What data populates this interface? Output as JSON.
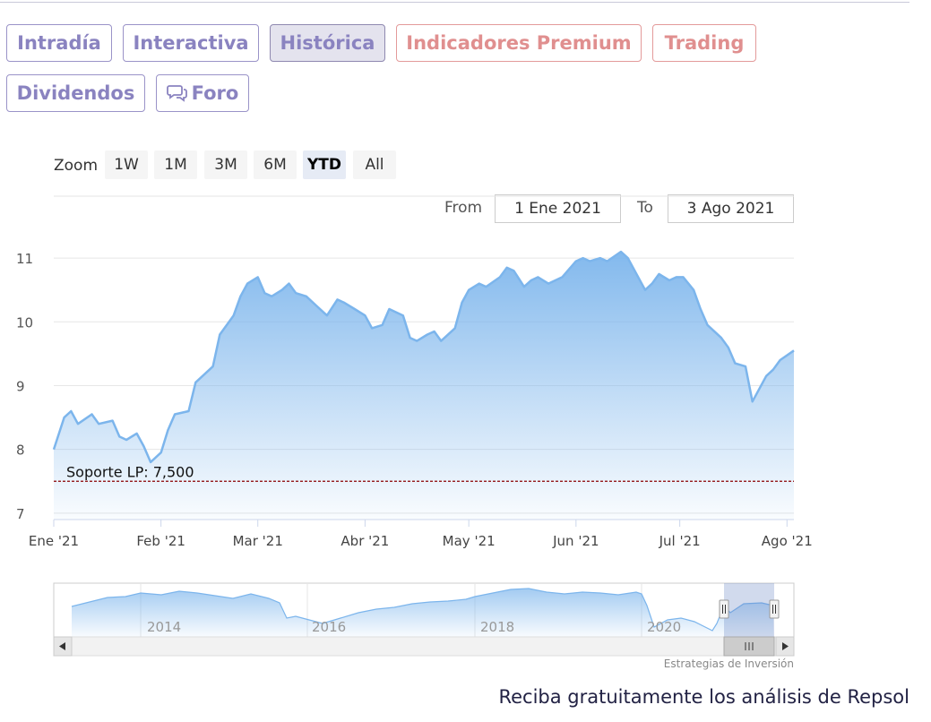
{
  "tabs": [
    {
      "label": "Intradía",
      "style": "purple"
    },
    {
      "label": "Interactiva",
      "style": "purple"
    },
    {
      "label": "Histórica",
      "style": "active"
    },
    {
      "label": "Indicadores Premium",
      "style": "red"
    },
    {
      "label": "Trading",
      "style": "red"
    },
    {
      "label": "Dividendos",
      "style": "purple"
    },
    {
      "label": "Foro",
      "style": "purple",
      "icon": "chat-bubbles-icon"
    }
  ],
  "zoom": {
    "label": "Zoom",
    "buttons": [
      "1W",
      "1M",
      "3M",
      "6M",
      "YTD",
      "All"
    ],
    "selected": "YTD"
  },
  "range": {
    "from_label": "From",
    "from_value": "1 Ene 2021",
    "to_label": "To",
    "to_value": "3 Ago 2021"
  },
  "chart_data": {
    "type": "area",
    "title": "",
    "xlabel": "",
    "ylabel": "",
    "ylim": [
      6.9,
      11.9
    ],
    "yticks": [
      7,
      8,
      9,
      10,
      11
    ],
    "xticks": [
      "Ene '21",
      "Feb '21",
      "Mar '21",
      "Abr '21",
      "May '21",
      "Jun '21",
      "Jul '21",
      "Ago '21"
    ],
    "grid": true,
    "legend": "none",
    "colors": {
      "line": "#7cb5ec",
      "fill_top": "#7cb5ec",
      "support": "#8b0000"
    },
    "series": [
      {
        "x": [
          "2021-01-01",
          "2021-01-04",
          "2021-01-06",
          "2021-01-08",
          "2021-01-12",
          "2021-01-14",
          "2021-01-18",
          "2021-01-20",
          "2021-01-22",
          "2021-01-25",
          "2021-01-27",
          "2021-01-29",
          "2021-02-01",
          "2021-02-03",
          "2021-02-05",
          "2021-02-09",
          "2021-02-11",
          "2021-02-13",
          "2021-02-16",
          "2021-02-18",
          "2021-02-22",
          "2021-02-24",
          "2021-02-26",
          "2021-03-01",
          "2021-03-03",
          "2021-03-05",
          "2021-03-08",
          "2021-03-10",
          "2021-03-12",
          "2021-03-15",
          "2021-03-18",
          "2021-03-21",
          "2021-03-24",
          "2021-03-26",
          "2021-03-29",
          "2021-04-01",
          "2021-04-03",
          "2021-04-06",
          "2021-04-08",
          "2021-04-12",
          "2021-04-14",
          "2021-04-16",
          "2021-04-19",
          "2021-04-21",
          "2021-04-23",
          "2021-04-27",
          "2021-04-29",
          "2021-05-01",
          "2021-05-04",
          "2021-05-06",
          "2021-05-10",
          "2021-05-12",
          "2021-05-14",
          "2021-05-17",
          "2021-05-19",
          "2021-05-21",
          "2021-05-24",
          "2021-05-26",
          "2021-05-28",
          "2021-06-01",
          "2021-06-03",
          "2021-06-05",
          "2021-06-08",
          "2021-06-10",
          "2021-06-14",
          "2021-06-16",
          "2021-06-18",
          "2021-06-21",
          "2021-06-23",
          "2021-06-25",
          "2021-06-28",
          "2021-06-30",
          "2021-07-02",
          "2021-07-05",
          "2021-07-07",
          "2021-07-09",
          "2021-07-13",
          "2021-07-15",
          "2021-07-17",
          "2021-07-20",
          "2021-07-22",
          "2021-07-26",
          "2021-07-28",
          "2021-07-30",
          "2021-08-03"
        ],
        "values": [
          8.0,
          8.5,
          8.6,
          8.4,
          8.55,
          8.4,
          8.45,
          8.2,
          8.15,
          8.25,
          8.05,
          7.8,
          7.95,
          8.3,
          8.55,
          8.6,
          9.05,
          9.15,
          9.3,
          9.8,
          10.1,
          10.4,
          10.6,
          10.7,
          10.45,
          10.4,
          10.5,
          10.6,
          10.45,
          10.4,
          10.25,
          10.1,
          10.35,
          10.3,
          10.2,
          10.1,
          9.9,
          9.95,
          10.2,
          10.1,
          9.75,
          9.7,
          9.8,
          9.85,
          9.7,
          9.9,
          10.3,
          10.5,
          10.6,
          10.55,
          10.7,
          10.85,
          10.8,
          10.55,
          10.65,
          10.7,
          10.6,
          10.65,
          10.7,
          10.95,
          11.0,
          10.95,
          11.0,
          10.95,
          11.1,
          11.0,
          10.8,
          10.5,
          10.6,
          10.75,
          10.65,
          10.7,
          10.7,
          10.5,
          10.2,
          9.95,
          9.75,
          9.6,
          9.35,
          9.3,
          8.75,
          9.15,
          9.25,
          9.4,
          9.55
        ]
      }
    ],
    "annotations": [
      {
        "label": "Soporte LP: 7,500",
        "y": 7.5
      }
    ],
    "navigator": {
      "labels": [
        "2014",
        "2016",
        "2018",
        "2020"
      ]
    }
  },
  "credit": "Estrategias de Inversión",
  "footer": "Reciba gratuitamente los análisis de Repsol"
}
